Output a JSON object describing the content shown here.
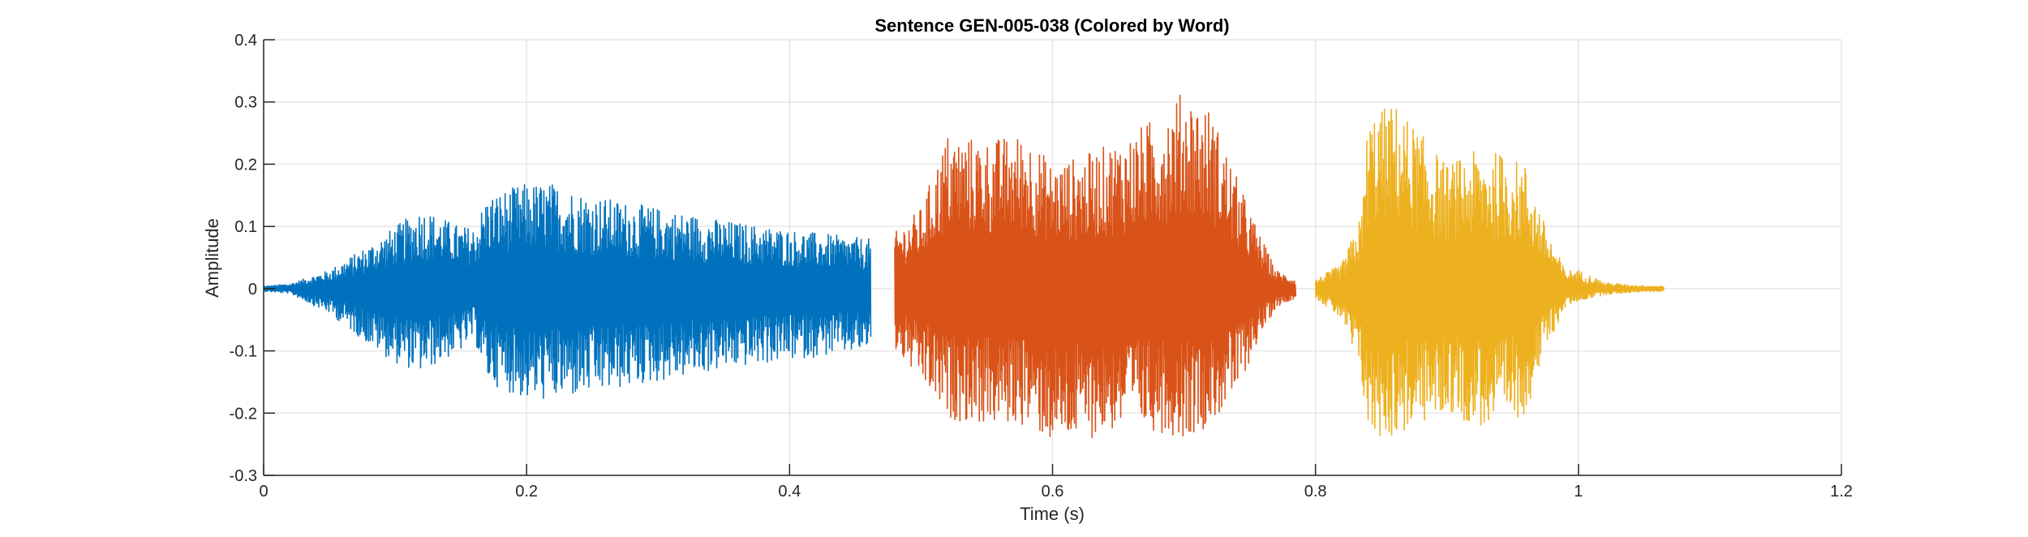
{
  "chart_data": {
    "type": "line",
    "title": "Sentence GEN-005-038 (Colored by Word)",
    "xlabel": "Time (s)",
    "ylabel": "Amplitude",
    "xlim": [
      0,
      1.2
    ],
    "ylim": [
      -0.3,
      0.4
    ],
    "x_ticks": [
      0,
      0.2,
      0.4,
      0.6,
      0.8,
      1,
      1.2
    ],
    "x_tick_labels": [
      "0",
      "0.2",
      "0.4",
      "0.6",
      "0.8",
      "1",
      "1.2"
    ],
    "y_ticks": [
      -0.3,
      -0.2,
      -0.1,
      0,
      0.1,
      0.2,
      0.3,
      0.4
    ],
    "y_tick_labels": [
      "-0.3",
      "-0.2",
      "-0.1",
      "0",
      "0.1",
      "0.2",
      "0.3",
      "0.4"
    ],
    "grid": true,
    "legend": "none",
    "colors": {
      "word1": "#0072BD",
      "word2": "#D95319",
      "word3": "#EDB120",
      "grid": "#e6e6e6",
      "axis": "#262626"
    },
    "series": [
      {
        "color": "#0072BD",
        "x_range": [
          0.0,
          0.462
        ],
        "envelope": {
          "t": [
            0.0,
            0.02,
            0.05,
            0.08,
            0.1,
            0.12,
            0.15,
            0.16,
            0.17,
            0.2,
            0.22,
            0.25,
            0.3,
            0.35,
            0.4,
            0.44,
            0.462
          ],
          "pos": [
            0.004,
            0.008,
            0.03,
            0.07,
            0.1,
            0.13,
            0.1,
            0.1,
            0.15,
            0.17,
            0.17,
            0.15,
            0.13,
            0.11,
            0.095,
            0.085,
            0.08
          ],
          "neg": [
            -0.004,
            -0.008,
            -0.04,
            -0.09,
            -0.12,
            -0.135,
            -0.1,
            -0.08,
            -0.15,
            -0.18,
            -0.18,
            -0.17,
            -0.15,
            -0.13,
            -0.115,
            -0.105,
            -0.1
          ]
        }
      },
      {
        "color": "#D95319",
        "x_range": [
          0.48,
          0.785
        ],
        "envelope": {
          "t": [
            0.48,
            0.5,
            0.52,
            0.55,
            0.58,
            0.6,
            0.63,
            0.66,
            0.68,
            0.7,
            0.72,
            0.74,
            0.755,
            0.77,
            0.785
          ],
          "pos": [
            0.09,
            0.13,
            0.25,
            0.24,
            0.25,
            0.2,
            0.22,
            0.25,
            0.28,
            0.32,
            0.29,
            0.18,
            0.1,
            0.03,
            0.015
          ],
          "neg": [
            -0.1,
            -0.15,
            -0.21,
            -0.22,
            -0.22,
            -0.25,
            -0.24,
            -0.22,
            -0.23,
            -0.24,
            -0.22,
            -0.17,
            -0.09,
            -0.03,
            -0.015
          ]
        }
      },
      {
        "color": "#EDB120",
        "x_range": [
          0.8,
          1.065
        ],
        "envelope": {
          "t": [
            0.8,
            0.82,
            0.835,
            0.84,
            0.86,
            0.88,
            0.9,
            0.92,
            0.94,
            0.96,
            0.975,
            0.99,
            1.0,
            1.02,
            1.04,
            1.065
          ],
          "pos": [
            0.015,
            0.04,
            0.12,
            0.28,
            0.3,
            0.25,
            0.2,
            0.22,
            0.22,
            0.2,
            0.1,
            0.03,
            0.03,
            0.01,
            0.006,
            0.004
          ],
          "neg": [
            -0.015,
            -0.05,
            -0.15,
            -0.24,
            -0.24,
            -0.22,
            -0.2,
            -0.22,
            -0.23,
            -0.2,
            -0.1,
            -0.03,
            -0.02,
            -0.01,
            -0.006,
            -0.004
          ]
        }
      }
    ]
  }
}
